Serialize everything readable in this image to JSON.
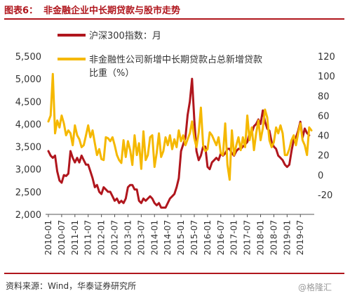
{
  "header": {
    "figure_label": "图表6：",
    "title": "非金融企业中长期贷款与股市走势"
  },
  "footer": {
    "source": "资料来源：Wind，华泰证券研究所",
    "watermark": "@格隆汇"
  },
  "colors": {
    "brand": "#b0161d",
    "csi300": "#b0161d",
    "loan_share": "#f5b800"
  },
  "chart_data": {
    "type": "line",
    "title": "非金融企业中长期贷款与股市走势",
    "xlabel": "",
    "ylabel": "",
    "y_left": {
      "min": 2000,
      "max": 5500,
      "ticks": [
        "2,000",
        "2,500",
        "3,000",
        "3,500",
        "4,000",
        "4,500",
        "5,000",
        "5,500"
      ]
    },
    "y_right": {
      "min": -40,
      "max": 120,
      "ticks": [
        "-20",
        "0",
        "20",
        "40",
        "60",
        "80",
        "100",
        "120"
      ],
      "tick_values": [
        -20,
        0,
        20,
        40,
        60,
        80,
        100,
        120
      ]
    },
    "x_ticks": [
      "2010-01",
      "2010-07",
      "2011-01",
      "2011-07",
      "2012-01",
      "2012-07",
      "2013-01",
      "2013-07",
      "2014-01",
      "2014-07",
      "2015-01",
      "2015-07",
      "2016-01",
      "2016-07",
      "2017-01",
      "2017-07",
      "2018-01",
      "2018-07",
      "2019-01",
      "2019-07"
    ],
    "legend_position": "top-left",
    "grid": false,
    "series": [
      {
        "name": "沪深300指数：月",
        "axis": "left",
        "color": "#b0161d",
        "start": "2010-01",
        "frequency": "monthly",
        "values": [
          3400,
          3300,
          3250,
          3300,
          2950,
          2750,
          2700,
          2870,
          2850,
          2900,
          3400,
          3250,
          3150,
          3250,
          3150,
          3300,
          3200,
          3100,
          3100,
          2950,
          2800,
          2600,
          2650,
          2500,
          2450,
          2600,
          2550,
          2500,
          2500,
          2400,
          2300,
          2350,
          2250,
          2300,
          2250,
          2350,
          2600,
          2650,
          2650,
          2550,
          2550,
          2300,
          2250,
          2350,
          2300,
          2350,
          2400,
          2350,
          2250,
          2200,
          2250,
          2150,
          2150,
          2150,
          2250,
          2350,
          2400,
          2450,
          2600,
          2800,
          3400,
          3550,
          3700,
          4200,
          4500,
          5000,
          4100,
          3400,
          3200,
          3300,
          3500,
          3500,
          3050,
          3000,
          3150,
          3200,
          3250,
          3200,
          3350,
          3300,
          3350,
          3450,
          3450,
          3350,
          3300,
          3400,
          3450,
          3450,
          3500,
          3550,
          3600,
          3800,
          3800,
          3950,
          4000,
          4100,
          4000,
          4300,
          4050,
          3900,
          3850,
          3600,
          3500,
          3450,
          3300,
          3250,
          3200,
          3100,
          3050,
          3100,
          3400,
          3650,
          3700,
          3850,
          4050,
          3700,
          3900,
          3800,
          3750
        ]
      },
      {
        "name": "非金融性公司新增中长期贷款占总新增贷款比重（%）",
        "axis": "right",
        "color": "#f5b800",
        "start": "2010-01",
        "frequency": "monthly",
        "values": [
          54,
          60,
          102,
          42,
          55,
          48,
          60,
          52,
          40,
          45,
          42,
          30,
          50,
          40,
          36,
          28,
          30,
          40,
          50,
          38,
          45,
          32,
          20,
          26,
          16,
          15,
          38,
          37,
          34,
          38,
          30,
          20,
          15,
          12,
          35,
          18,
          34,
          25,
          10,
          40,
          20,
          32,
          6,
          44,
          15,
          20,
          38,
          40,
          8,
          22,
          42,
          18,
          24,
          38,
          30,
          40,
          26,
          36,
          28,
          45,
          34,
          40,
          30,
          36,
          42,
          54,
          37,
          28,
          43,
          68,
          30,
          24,
          26,
          43,
          40,
          35,
          30,
          38,
          22,
          20,
          52,
          10,
          -5,
          45,
          20,
          30,
          38,
          25,
          38,
          28,
          60,
          35,
          48,
          25,
          42,
          55,
          35,
          47,
          66,
          58,
          35,
          28,
          33,
          48,
          42,
          50,
          42,
          20,
          20,
          26,
          35,
          40,
          30,
          42,
          52,
          35,
          30,
          20,
          48,
          45
        ]
      }
    ]
  }
}
